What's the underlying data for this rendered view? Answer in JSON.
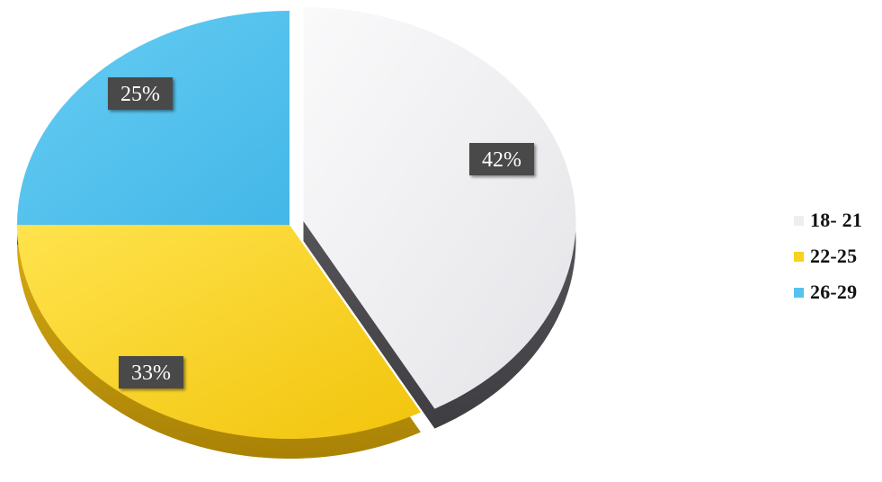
{
  "chart_data": {
    "type": "pie",
    "categories": [
      "18- 21",
      "22-25",
      "26-29"
    ],
    "values": [
      42,
      33,
      25
    ],
    "data_labels": [
      "42%",
      "33%",
      "25%"
    ],
    "legend": [
      "18- 21",
      "22-25",
      "26-29"
    ],
    "legend_position": "right",
    "colors": [
      "#eeeef1",
      "#f7d21e",
      "#56c2ee"
    ],
    "style": "3d exploded pie",
    "title": "",
    "xlabel": "",
    "ylabel": ""
  }
}
